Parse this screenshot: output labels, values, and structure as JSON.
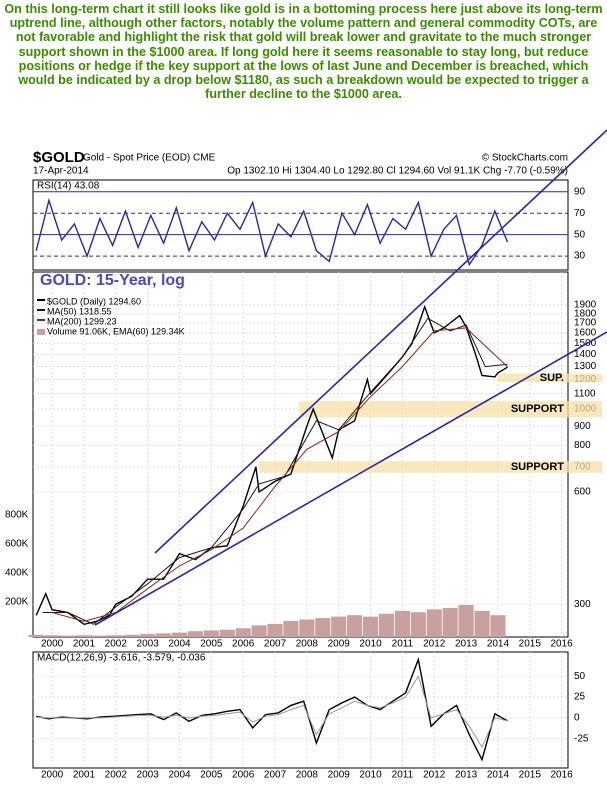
{
  "commentary": "On this long-term chart it still looks like gold is in a bottoming process here just above its long-term uptrend line, although other factors, notably the volume pattern and general commodity COTs, are not favorable and highlight the risk that gold will break lower and gravitate to the much stronger support shown in the $1000 area. If long gold here it seems reasonable to stay long, but reduce positions or hedge if the key support at the lows of last June and December is breached, which would be indicated by a drop below $1180, as such a breakdown would be expected to trigger a further decline to the $1000 area.",
  "header": {
    "symbol": "$GOLD",
    "name": "Gold - Spot Price (EOD) CME",
    "credit": "© StockCharts.com",
    "date": "17-Apr-2014",
    "quote": "Op 1302.10 Hi 1304.40 Lo 1292.80 Cl 1294.60 Vol 91.1K Chg -7.70 (-0.59%)"
  },
  "chart_data": [
    {
      "type": "line",
      "title": "RSI(14) 43.08",
      "xlim": [
        1999.4,
        2016.2
      ],
      "ylim": [
        17,
        101
      ],
      "yticks": [
        30,
        50,
        70,
        90
      ],
      "grid": true,
      "series": [
        {
          "color": "#2a2aa0",
          "x": [
            1999.5,
            1999.9,
            2000.3,
            2000.7,
            2001.1,
            2001.5,
            2001.9,
            2002.3,
            2002.7,
            2003.1,
            2003.5,
            2003.9,
            2004.3,
            2004.7,
            2005.1,
            2005.5,
            2005.9,
            2006.3,
            2006.7,
            2007.1,
            2007.5,
            2007.9,
            2008.3,
            2008.7,
            2009.1,
            2009.5,
            2009.9,
            2010.3,
            2010.7,
            2011.1,
            2011.5,
            2011.9,
            2012.3,
            2012.7,
            2013.1,
            2013.5,
            2013.9,
            2014.3
          ],
          "values": [
            35,
            82,
            45,
            60,
            30,
            65,
            40,
            72,
            38,
            68,
            42,
            75,
            35,
            62,
            45,
            70,
            55,
            80,
            30,
            60,
            48,
            72,
            35,
            25,
            70,
            50,
            78,
            42,
            65,
            55,
            80,
            30,
            55,
            68,
            22,
            40,
            72,
            43.08
          ]
        }
      ]
    },
    {
      "type": "line",
      "title": "GOLD: 15-Year, log",
      "log": true,
      "xlim": [
        1999.4,
        2016.2
      ],
      "ylim": [
        245,
        2330
      ],
      "yticks": [
        300,
        600,
        700,
        800,
        900,
        1000,
        1100,
        1200,
        1300,
        1400,
        1500,
        1600,
        1700,
        1800,
        1900
      ],
      "xticks": [
        2000,
        2001,
        2002,
        2003,
        2004,
        2005,
        2006,
        2007,
        2008,
        2009,
        2010,
        2011,
        2012,
        2013,
        2014,
        2015,
        2016
      ],
      "grid": true,
      "y2lim": [
        0,
        2510000
      ],
      "y2ticks": [
        {
          "value": 200000,
          "label": "200K"
        },
        {
          "value": 400000,
          "label": "400K"
        },
        {
          "value": 600000,
          "label": "600K"
        },
        {
          "value": 800000,
          "label": "800K"
        }
      ],
      "bands": [
        {
          "label": "SUP.",
          "from": 1180,
          "to": 1245,
          "x_from": 2014.0
        },
        {
          "label": "SUPPORT",
          "from": 950,
          "to": 1050,
          "x_from": 2007.75
        },
        {
          "label": "SUPPORT",
          "from": 675,
          "to": 725,
          "x_from": 2006.5
        }
      ],
      "series": [
        {
          "name": "Volume 91.06K, EMA(60) 129.34K",
          "color": "#c9a0a0",
          "axis": "y2",
          "kind": "bar",
          "x": [
            1999.5,
            2000,
            2000.5,
            2001,
            2001.5,
            2002,
            2002.5,
            2003,
            2003.5,
            2004,
            2004.5,
            2005,
            2005.5,
            2006,
            2006.5,
            2007,
            2007.5,
            2008,
            2008.5,
            2009,
            2009.5,
            2010,
            2010.5,
            2011,
            2011.5,
            2012,
            2012.5,
            2013,
            2013.5,
            2014
          ],
          "values": [
            15000,
            12000,
            10000,
            12000,
            10000,
            12000,
            15000,
            20000,
            25000,
            30000,
            40000,
            45000,
            50000,
            60000,
            80000,
            90000,
            110000,
            120000,
            130000,
            140000,
            150000,
            140000,
            160000,
            180000,
            170000,
            190000,
            200000,
            220000,
            180000,
            150000
          ]
        },
        {
          "name": "MA(200) 1299.23",
          "color": "#8b2a10",
          "x": [
            2000,
            2001,
            2002,
            2003,
            2004,
            2005,
            2006,
            2007,
            2008,
            2009,
            2010,
            2011,
            2012,
            2013,
            2013.7,
            2014.3
          ],
          "values": [
            285,
            270,
            285,
            330,
            380,
            420,
            480,
            620,
            780,
            870,
            1080,
            1300,
            1620,
            1650,
            1450,
            1299.23
          ]
        },
        {
          "name": "MA(50) 1318.55",
          "color": "#1a1a1a",
          "x": [
            1999.7,
            2000.5,
            2001.3,
            2002,
            2003,
            2004,
            2005,
            2006,
            2006.5,
            2007.3,
            2008.3,
            2009,
            2010,
            2011,
            2011.8,
            2012.5,
            2013,
            2013.6,
            2014.3
          ],
          "values": [
            285,
            285,
            265,
            295,
            340,
            400,
            425,
            540,
            630,
            660,
            930,
            880,
            1110,
            1380,
            1750,
            1620,
            1680,
            1300,
            1318.55
          ]
        },
        {
          "name": "$GOLD (Daily) 1294.60",
          "color": "#000000",
          "x": [
            1999.5,
            1999.8,
            2000,
            2000.5,
            2001,
            2001.4,
            2001.8,
            2002,
            2002.5,
            2003,
            2003.5,
            2004,
            2004.5,
            2005,
            2005.5,
            2006,
            2006.4,
            2006.5,
            2007,
            2007.5,
            2008,
            2008.2,
            2008.8,
            2009,
            2009.5,
            2009.9,
            2010,
            2010.5,
            2011,
            2011.3,
            2011.7,
            2012,
            2012.3,
            2012.8,
            2013,
            2013.3,
            2013.5,
            2013.9,
            2014,
            2014.3
          ],
          "values": [
            280,
            320,
            290,
            285,
            265,
            270,
            280,
            300,
            315,
            350,
            350,
            410,
            395,
            425,
            430,
            550,
            700,
            600,
            640,
            670,
            900,
            1000,
            740,
            880,
            930,
            1200,
            1100,
            1230,
            1380,
            1500,
            1880,
            1600,
            1650,
            1780,
            1660,
            1400,
            1230,
            1220,
            1250,
            1294.6
          ]
        }
      ]
    },
    {
      "type": "line",
      "title": "MACD(12,26,9) -3.616, -3.579, -0.036",
      "xlim": [
        1999.4,
        2016.2
      ],
      "ylim": [
        -60,
        79
      ],
      "yticks": [
        -25,
        0,
        25,
        50
      ],
      "xticks": [
        2000,
        2001,
        2002,
        2003,
        2004,
        2005,
        2006,
        2007,
        2008,
        2009,
        2010,
        2011,
        2012,
        2013,
        2014,
        2015,
        2016
      ],
      "grid": true,
      "series": [
        {
          "color": "#999999",
          "x": [
            1999.5,
            1999.9,
            2000.3,
            2000.7,
            2001.1,
            2001.5,
            2001.9,
            2002.3,
            2002.7,
            2003.1,
            2003.5,
            2003.9,
            2004.3,
            2004.7,
            2005.1,
            2005.5,
            2005.9,
            2006.3,
            2006.7,
            2007.1,
            2007.5,
            2007.9,
            2008.3,
            2008.7,
            2009.1,
            2009.5,
            2009.9,
            2010.3,
            2010.7,
            2011.1,
            2011.5,
            2011.9,
            2012.3,
            2012.7,
            2013.1,
            2013.5,
            2013.9,
            2014.3
          ],
          "values": [
            1,
            0,
            0,
            0,
            0,
            0,
            1,
            2,
            3,
            3,
            1,
            3,
            0,
            2,
            3,
            5,
            7,
            -5,
            2,
            4,
            10,
            15,
            -20,
            5,
            12,
            20,
            15,
            12,
            18,
            25,
            50,
            0,
            5,
            10,
            -10,
            -35,
            0,
            -3.579
          ]
        },
        {
          "color": "#000000",
          "x": [
            1999.5,
            1999.9,
            2000.3,
            2000.7,
            2001.1,
            2001.5,
            2001.9,
            2002.3,
            2002.7,
            2003.1,
            2003.5,
            2003.9,
            2004.3,
            2004.7,
            2005.1,
            2005.5,
            2005.9,
            2006.3,
            2006.7,
            2007.1,
            2007.5,
            2007.9,
            2008.3,
            2008.7,
            2009.1,
            2009.5,
            2009.9,
            2010.3,
            2010.7,
            2011.1,
            2011.5,
            2011.9,
            2012.3,
            2012.7,
            2013.1,
            2013.5,
            2013.9,
            2014.3
          ],
          "values": [
            2,
            -1,
            1,
            0,
            -1,
            1,
            2,
            3,
            4,
            5,
            -2,
            6,
            -4,
            3,
            5,
            8,
            10,
            -12,
            4,
            6,
            15,
            20,
            -30,
            10,
            18,
            25,
            15,
            10,
            20,
            30,
            70,
            -10,
            5,
            15,
            -20,
            -50,
            5,
            -3.616
          ]
        }
      ]
    }
  ]
}
